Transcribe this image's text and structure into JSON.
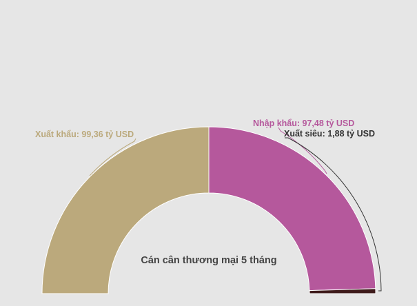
{
  "chart_data": {
    "type": "pie",
    "subtype": "semi-donut",
    "title": "Cán cân thương mại 5 tháng",
    "unit": "tỷ USD",
    "slices": [
      {
        "label": "Xuất khẩu: 99,36 tỷ USD",
        "name": "Xuất khẩu",
        "value": 99.36,
        "color": "#bba97c"
      },
      {
        "label": "Nhập khẩu: 97,48 tỷ USD",
        "name": "Nhập khẩu",
        "value": 97.48,
        "color": "#b5589c"
      },
      {
        "label": "Xuất siêu: 1,88 tỷ USD",
        "name": "Xuất siêu",
        "value": 1.88,
        "color": "#3e1a1a"
      }
    ],
    "label_colors": [
      "#bba97c",
      "#b5589c",
      "#333333"
    ]
  }
}
